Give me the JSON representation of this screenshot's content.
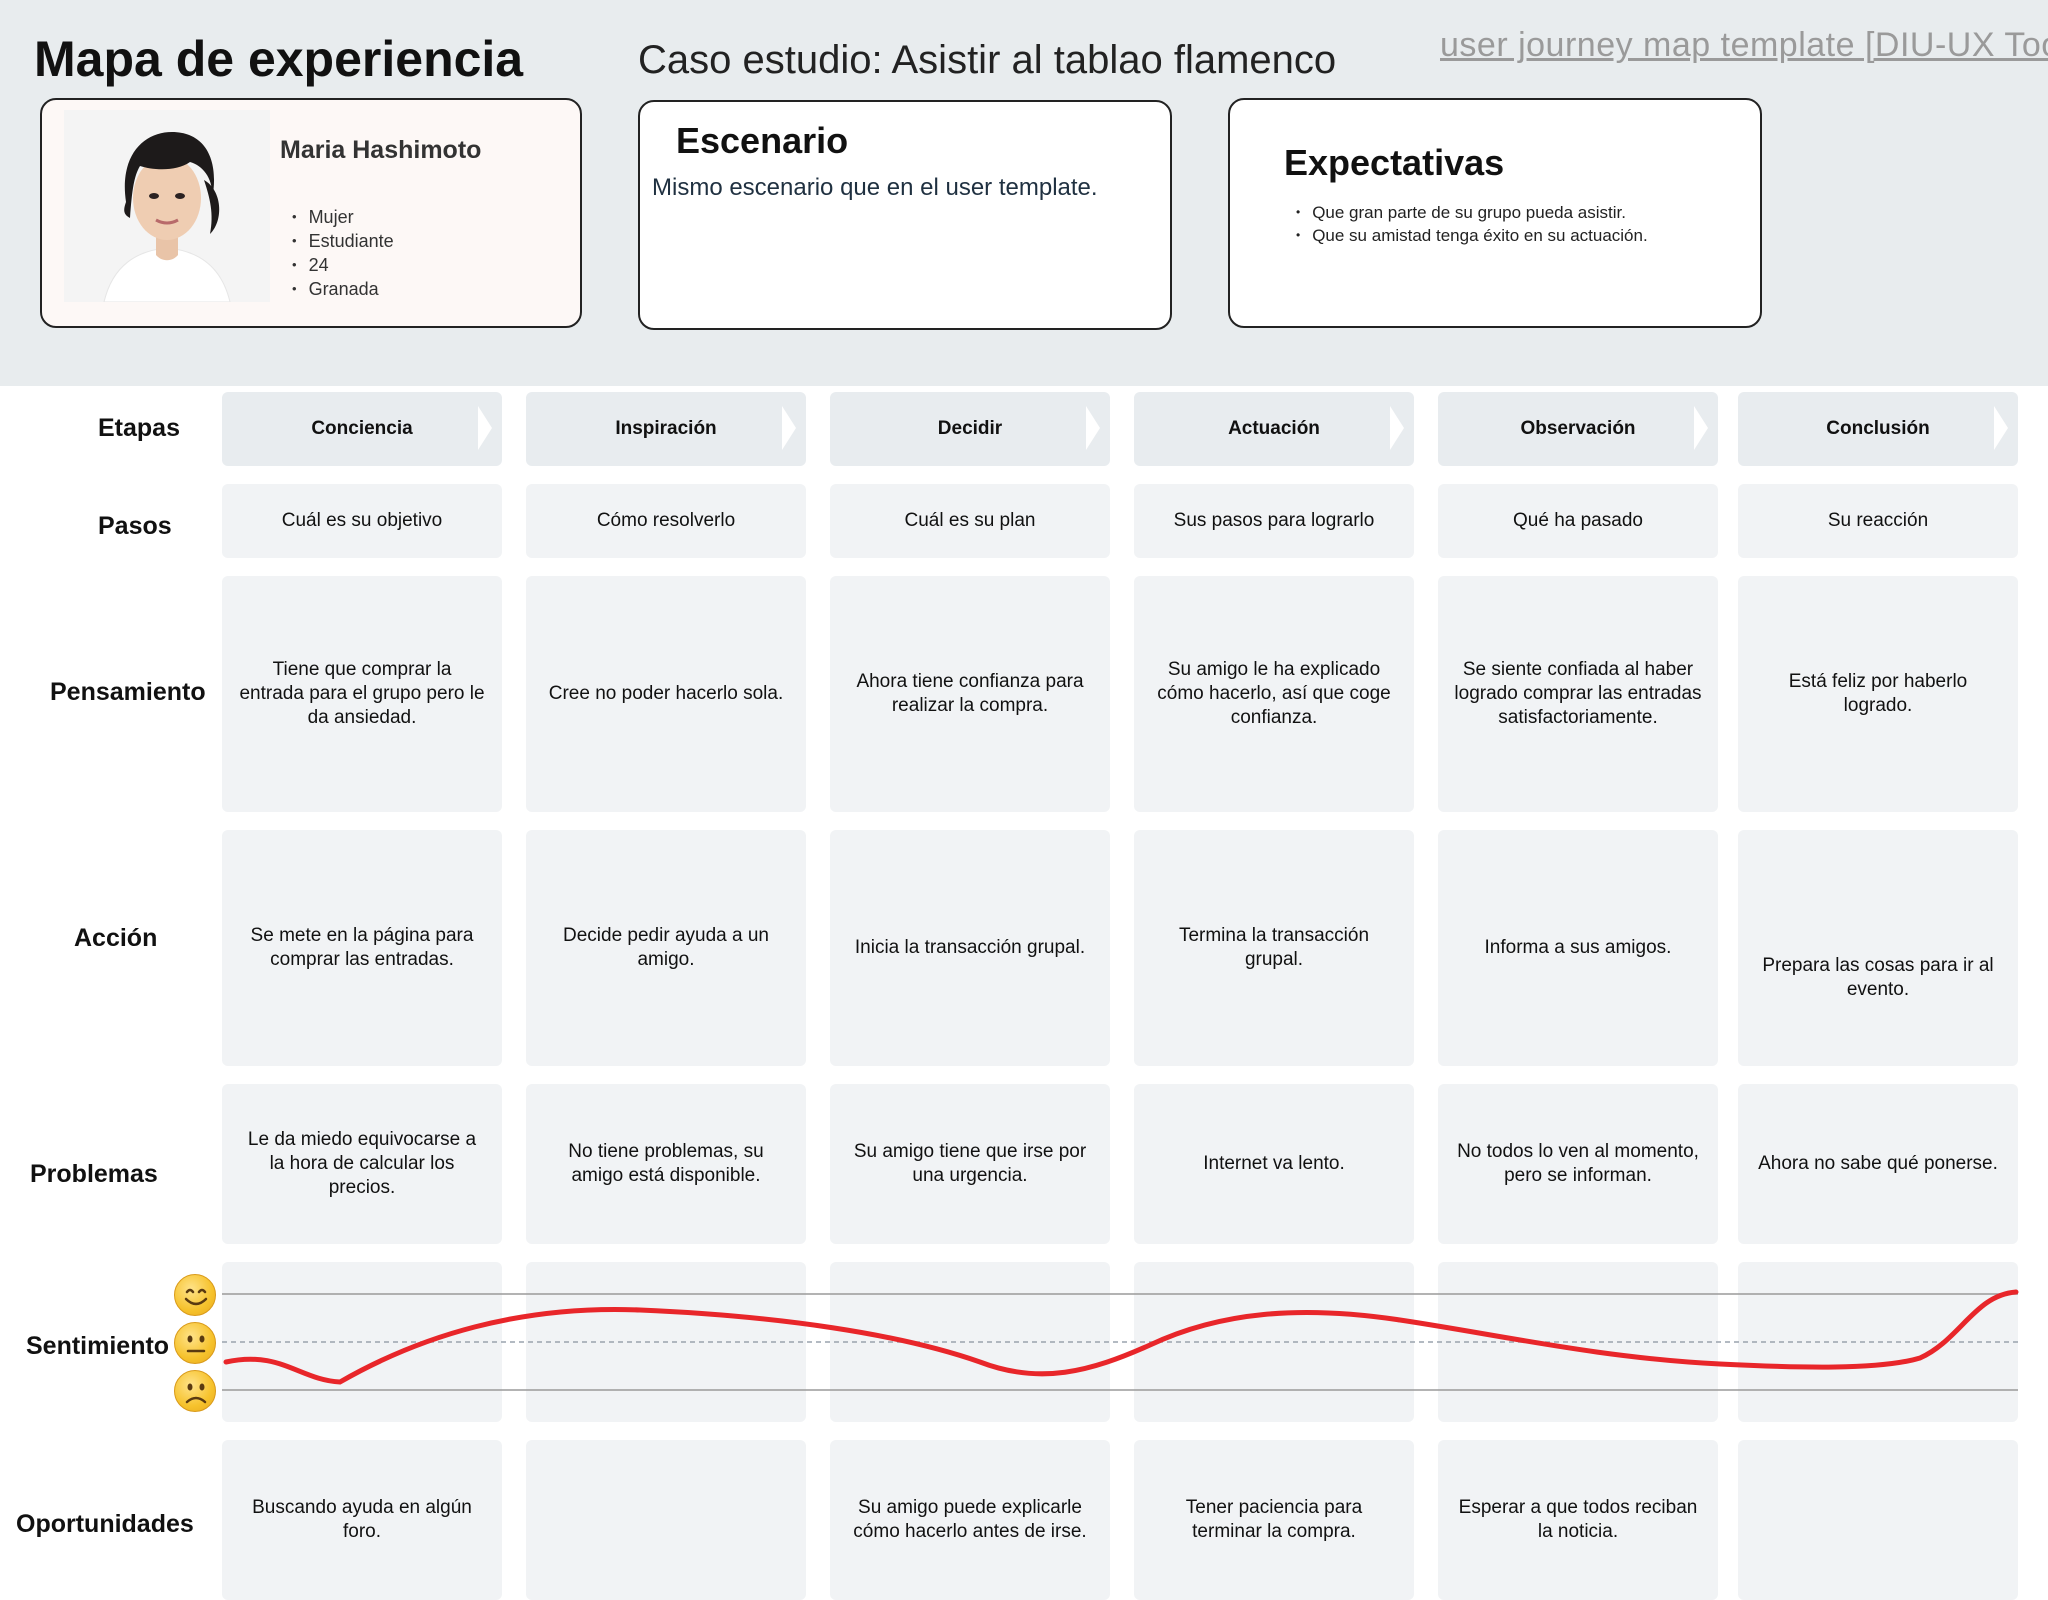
{
  "header": {
    "title": "Mapa de experiencia",
    "case_study": "Caso estudio: Asistir al tablao flamenco",
    "template_link": "user journey map template [DIU-UX Toolkit]"
  },
  "persona": {
    "name": "Maria Hashimoto",
    "photo": "persona-photo",
    "attributes": [
      "Mujer",
      "Estudiante",
      "24",
      "Granada"
    ]
  },
  "scenario": {
    "title": "Escenario",
    "text": "Mismo escenario que en el user template."
  },
  "expectations": {
    "title": "Expectativas",
    "items": [
      "Que gran parte de su grupo pueda asistir.",
      "Que su amistad tenga éxito en su actuación."
    ]
  },
  "row_labels": {
    "stages": "Etapas",
    "steps": "Pasos",
    "thought": "Pensamiento",
    "action": "Acción",
    "problems": "Problemas",
    "sentiment": "Sentimiento",
    "opportunities": "Oportunidades"
  },
  "stages": [
    "Conciencia",
    "Inspiración",
    "Decidir",
    "Actuación",
    "Observación",
    "Conclusión"
  ],
  "steps": [
    "Cuál es su objetivo",
    "Cómo resolverlo",
    "Cuál es su plan",
    "Sus pasos para lograrlo",
    "Qué ha pasado",
    "Su reacción"
  ],
  "thoughts": [
    "Tiene que comprar la entrada para el grupo pero le da ansiedad.",
    "Cree no poder hacerlo sola.",
    "Ahora tiene confianza para realizar la compra.",
    "Su amigo le ha explicado cómo hacerlo, así que coge confianza.",
    "Se siente confiada al haber logrado comprar las entradas satisfactoriamente.",
    "Está feliz por haberlo logrado."
  ],
  "actions": [
    "Se mete en la página para comprar las entradas.",
    "Decide pedir ayuda a un amigo.",
    "Inicia la transacción grupal.",
    "Termina la transacción grupal.",
    "Informa a sus amigos.",
    "Prepara las cosas para ir al evento."
  ],
  "problems": [
    "Le da miedo equivocarse a la hora de calcular los precios.",
    "No tiene problemas, su amigo está disponible.",
    "Su amigo tiene que irse por una urgencia.",
    "Internet va lento.",
    "No todos lo ven al momento, pero se informan.",
    "Ahora no sabe qué ponerse."
  ],
  "opportunities": [
    "Buscando ayuda en algún foro.",
    "",
    "Su amigo puede explicarle cómo hacerlo antes de irse.",
    "Tener paciencia para terminar la compra.",
    "Esperar a que todos reciban la noticia.",
    ""
  ],
  "sentiment": {
    "scale": [
      "happy",
      "neutral",
      "sad"
    ],
    "icons": [
      "happy-face-icon",
      "neutral-face-icon",
      "sad-face-icon"
    ],
    "curve_color": "#e8262a"
  }
}
